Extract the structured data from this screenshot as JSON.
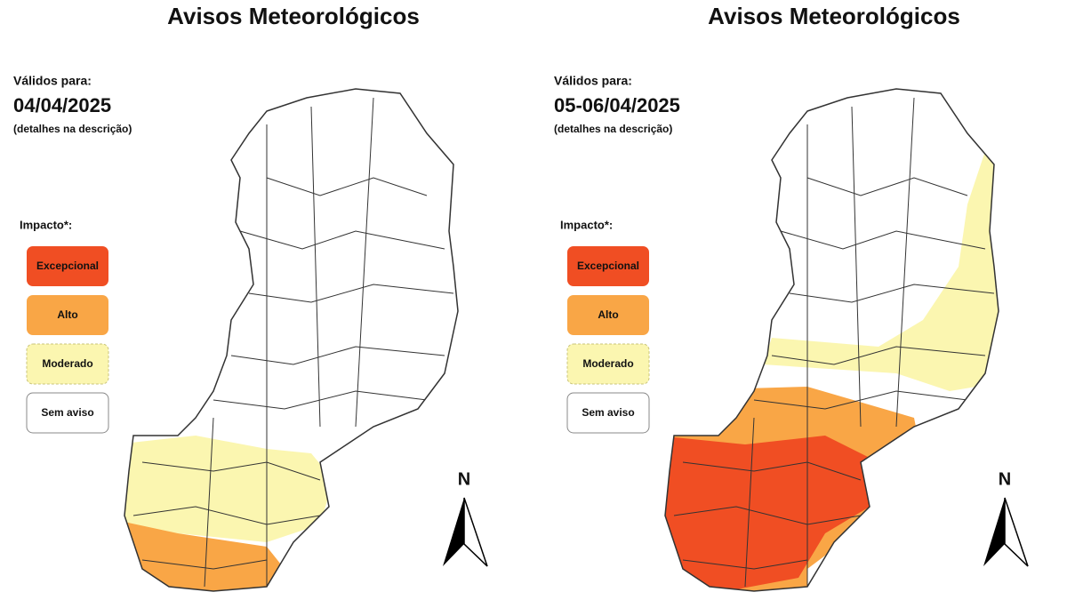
{
  "panels": [
    {
      "title": "Avisos Meteorológicos",
      "valid_label": "Válidos para:",
      "date": "04/04/2025",
      "details": "(detalhes na descrição)",
      "legend_title": "Impacto*:",
      "legend": [
        {
          "label": "Excepcional",
          "color": "#f04e23"
        },
        {
          "label": "Alto",
          "color": "#f9a646"
        },
        {
          "label": "Moderado",
          "color": "#fbf6b0"
        },
        {
          "label": "Sem aviso",
          "color": "#ffffff"
        }
      ],
      "north": "N"
    },
    {
      "title": "Avisos Meteorológicos",
      "valid_label": "Válidos para:",
      "date": "05-06/04/2025",
      "details": "(detalhes na descrição)",
      "legend_title": "Impacto*:",
      "legend": [
        {
          "label": "Excepcional",
          "color": "#f04e23"
        },
        {
          "label": "Alto",
          "color": "#f9a646"
        },
        {
          "label": "Moderado",
          "color": "#fbf6b0"
        },
        {
          "label": "Sem aviso",
          "color": "#ffffff"
        }
      ],
      "north": "N"
    }
  ]
}
